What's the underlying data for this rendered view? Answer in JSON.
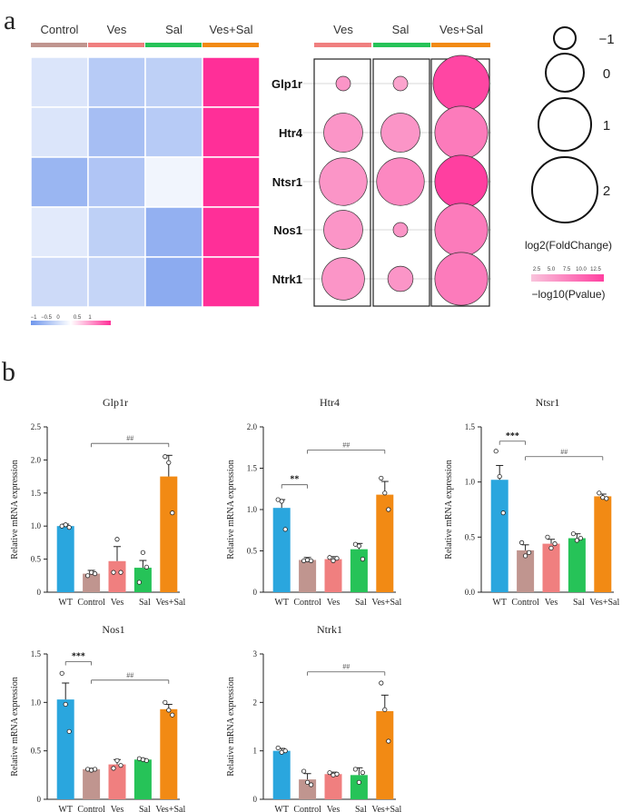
{
  "panel_labels": {
    "a": "a",
    "b": "b"
  },
  "colors": {
    "control": "#c0958f",
    "ves": "#f07f7f",
    "sal": "#26c358",
    "vessal": "#f28a14",
    "wt": "#2aa6de",
    "heat_low": "#6f96ec",
    "heat_mid": "#ffffff",
    "heat_high": "#ff2f98",
    "bubble_fill": "#f6a0c4",
    "bubble_fill_strong": "#fb4aa3"
  },
  "chart_data": [
    {
      "type": "heatmap",
      "columns": [
        "Control",
        "Ves",
        "Sal",
        "Ves+Sal"
      ],
      "rows": [
        "Glp1r",
        "Htr4",
        "Ntsr1",
        "Nos1",
        "Ntrk1"
      ],
      "values": [
        [
          -0.25,
          -0.5,
          -0.45,
          1.0
        ],
        [
          -0.25,
          -0.62,
          -0.5,
          1.0
        ],
        [
          -0.7,
          -0.55,
          -0.1,
          1.0
        ],
        [
          -0.2,
          -0.45,
          -0.75,
          1.0
        ],
        [
          -0.35,
          -0.4,
          -0.8,
          1.0
        ]
      ],
      "legend_ticks": [
        "−1",
        "−0.5",
        "0",
        "0.5",
        "1"
      ],
      "legend_range": [
        -1,
        1
      ]
    },
    {
      "type": "scatter",
      "subtype": "bubble",
      "columns": [
        "Ves",
        "Sal",
        "Ves+Sal"
      ],
      "rows": [
        "Glp1r",
        "Htr4",
        "Ntsr1",
        "Nos1",
        "Ntrk1"
      ],
      "log2_fold_change": [
        [
          -1.0,
          -1.1,
          2.3
        ],
        [
          1.0,
          1.0,
          1.8
        ],
        [
          1.5,
          1.5,
          1.8
        ],
        [
          1.0,
          -0.7,
          1.8
        ],
        [
          1.2,
          0.2,
          1.8
        ]
      ],
      "neg_log10_p": [
        [
          6.0,
          5.0,
          12.0
        ],
        [
          6.0,
          6.0,
          8.0
        ],
        [
          6.0,
          7.0,
          12.5
        ],
        [
          6.0,
          6.0,
          8.0
        ],
        [
          6.0,
          6.0,
          8.0
        ]
      ],
      "size_legend": {
        "values": [
          "−1",
          "0",
          "1",
          "2"
        ],
        "title": "log2(FoldChange)"
      },
      "color_legend": {
        "ticks": [
          "2.5",
          "5.0",
          "7.5",
          "10.0",
          "12.5"
        ],
        "title": "−log10(Pvalue)",
        "range": [
          2.5,
          12.5
        ]
      }
    },
    {
      "type": "bar",
      "title": "Glp1r",
      "ylabel": "Relative mRNA expression",
      "categories": [
        "WT",
        "Control",
        "Ves",
        "Sal",
        "Ves+Sal"
      ],
      "values": [
        1.0,
        0.28,
        0.47,
        0.37,
        1.75
      ],
      "errors": [
        0.03,
        0.05,
        0.22,
        0.11,
        0.32
      ],
      "points": [
        [
          1.0,
          1.02,
          0.98
        ],
        [
          0.25,
          0.3,
          0.28
        ],
        [
          0.3,
          0.8,
          0.3
        ],
        [
          0.15,
          0.6,
          0.38
        ],
        [
          2.05,
          1.96,
          1.2
        ]
      ],
      "ylim": [
        0,
        2.5
      ],
      "yticks": [
        "0",
        "0.5",
        "1.0",
        "1.5",
        "2.0",
        "2.5"
      ],
      "annotations": [
        {
          "text": "##",
          "from": 1,
          "to": 4,
          "y": 2.25
        }
      ]
    },
    {
      "type": "bar",
      "title": "Htr4",
      "ylabel": "Relative mRNA expression",
      "categories": [
        "WT",
        "Control",
        "Ves",
        "Sal",
        "Ves+Sal"
      ],
      "values": [
        1.02,
        0.39,
        0.4,
        0.52,
        1.18
      ],
      "errors": [
        0.1,
        0.03,
        0.03,
        0.07,
        0.16
      ],
      "points": [
        [
          1.12,
          1.1,
          0.76
        ],
        [
          0.38,
          0.39,
          0.38
        ],
        [
          0.42,
          0.38,
          0.41
        ],
        [
          0.58,
          0.56,
          0.4
        ],
        [
          1.38,
          1.2,
          1.0
        ]
      ],
      "ylim": [
        0,
        2.0
      ],
      "yticks": [
        "0",
        "0.5",
        "1.0",
        "1.5",
        "2.0"
      ],
      "annotations": [
        {
          "text": "**",
          "from": 0,
          "to": 1,
          "y": 1.3
        },
        {
          "text": "##",
          "from": 1,
          "to": 4,
          "y": 1.72
        }
      ]
    },
    {
      "type": "bar",
      "title": "Ntsr1",
      "ylabel": "Relative mRNA expression",
      "categories": [
        "WT",
        "Control",
        "Ves",
        "Sal",
        "Ves+Sal"
      ],
      "values": [
        1.02,
        0.38,
        0.44,
        0.49,
        0.87
      ],
      "errors": [
        0.13,
        0.05,
        0.04,
        0.04,
        0.02
      ],
      "points": [
        [
          1.28,
          1.05,
          0.72
        ],
        [
          0.45,
          0.33,
          0.36
        ],
        [
          0.5,
          0.4,
          0.44
        ],
        [
          0.53,
          0.47,
          0.49
        ],
        [
          0.9,
          0.86,
          0.85
        ]
      ],
      "ylim": [
        0,
        1.5
      ],
      "yticks": [
        "0.0",
        "0.5",
        "1.0",
        "1.5"
      ],
      "annotations": [
        {
          "text": "***",
          "from": 0,
          "to": 1,
          "y": 1.37
        },
        {
          "text": "##",
          "from": 1,
          "to": 4,
          "y": 1.23
        }
      ]
    },
    {
      "type": "bar",
      "title": "Nos1",
      "ylabel": "Relative mRNA expression",
      "categories": [
        "WT",
        "Control",
        "Ves",
        "Sal",
        "Ves+Sal"
      ],
      "values": [
        1.03,
        0.31,
        0.36,
        0.41,
        0.93
      ],
      "errors": [
        0.17,
        0.01,
        0.05,
        0.01,
        0.05
      ],
      "points": [
        [
          1.3,
          0.98,
          0.7
        ],
        [
          0.31,
          0.3,
          0.31
        ],
        [
          0.32,
          0.4,
          0.35
        ],
        [
          0.42,
          0.41,
          0.4
        ],
        [
          1.0,
          0.92,
          0.87
        ]
      ],
      "ylim": [
        0,
        1.5
      ],
      "yticks": [
        "0",
        "0.5",
        "1.0",
        "1.5"
      ],
      "annotations": [
        {
          "text": "***",
          "from": 0,
          "to": 1,
          "y": 1.42
        },
        {
          "text": "##",
          "from": 1,
          "to": 4,
          "y": 1.23
        }
      ]
    },
    {
      "type": "bar",
      "title": "Ntrk1",
      "ylabel": "Relative mRNA expression",
      "categories": [
        "WT",
        "Control",
        "Ves",
        "Sal",
        "Ves+Sal"
      ],
      "values": [
        1.0,
        0.41,
        0.52,
        0.5,
        1.82
      ],
      "errors": [
        0.05,
        0.12,
        0.04,
        0.15,
        0.33
      ],
      "points": [
        [
          1.06,
          0.97,
          1.0
        ],
        [
          0.58,
          0.35,
          0.3
        ],
        [
          0.55,
          0.5,
          0.52
        ],
        [
          0.62,
          0.35,
          0.55
        ],
        [
          2.4,
          1.85,
          1.2
        ]
      ],
      "ylim": [
        0,
        3
      ],
      "yticks": [
        "0",
        "1",
        "2",
        "3"
      ],
      "annotations": [
        {
          "text": "##",
          "from": 1,
          "to": 4,
          "y": 2.63
        }
      ]
    }
  ]
}
